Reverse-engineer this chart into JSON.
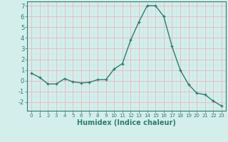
{
  "x": [
    0,
    1,
    2,
    3,
    4,
    5,
    6,
    7,
    8,
    9,
    10,
    11,
    12,
    13,
    14,
    15,
    16,
    17,
    18,
    19,
    20,
    21,
    22,
    23
  ],
  "y": [
    0.7,
    0.3,
    -0.3,
    -0.3,
    0.2,
    -0.1,
    -0.2,
    -0.15,
    0.1,
    0.1,
    1.1,
    1.6,
    3.8,
    5.5,
    7.0,
    7.0,
    6.0,
    3.2,
    1.0,
    -0.35,
    -1.15,
    -1.3,
    -1.9,
    -2.35
  ],
  "line_color": "#2d7d6e",
  "marker": "+",
  "marker_size": 3,
  "linewidth": 1.0,
  "xlabel": "Humidex (Indice chaleur)",
  "xlim": [
    -0.5,
    23.5
  ],
  "ylim": [
    -2.8,
    7.4
  ],
  "yticks": [
    -2,
    -1,
    0,
    1,
    2,
    3,
    4,
    5,
    6,
    7
  ],
  "xticks": [
    0,
    1,
    2,
    3,
    4,
    5,
    6,
    7,
    8,
    9,
    10,
    11,
    12,
    13,
    14,
    15,
    16,
    17,
    18,
    19,
    20,
    21,
    22,
    23
  ],
  "bg_color": "#d4eeec",
  "grid_minor_color": "#c8e8e5",
  "grid_major_color": "#e8b8b8",
  "axis_color": "#2d7d6e",
  "xlabel_fontsize": 7,
  "tick_fontsize": 6
}
